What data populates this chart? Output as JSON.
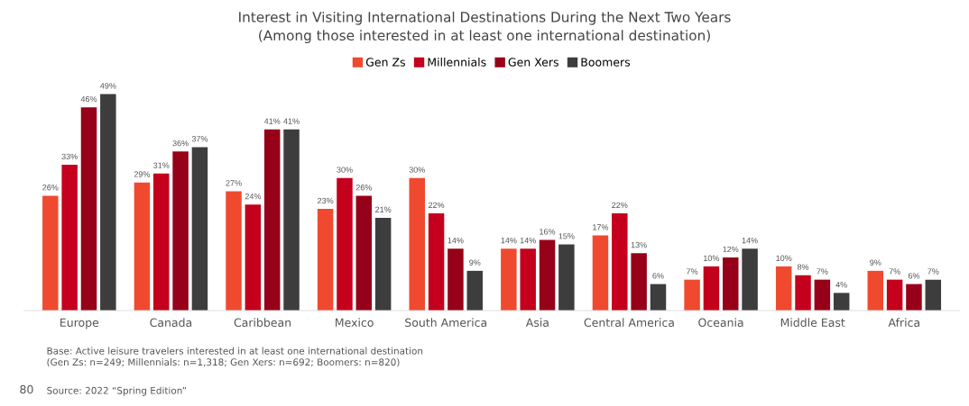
{
  "chart_data": {
    "type": "bar",
    "title": "Interest in Visiting International Destinations During the Next Two Years",
    "subtitle": "(Among those interested in at least one international destination)",
    "categories": [
      "Europe",
      "Canada",
      "Caribbean",
      "Mexico",
      "South America",
      "Asia",
      "Central America",
      "Oceania",
      "Middle East",
      "Africa"
    ],
    "series": [
      {
        "name": "Gen Zs",
        "color": "#ef4a2f",
        "values": [
          26,
          29,
          27,
          23,
          30,
          14,
          17,
          7,
          10,
          9
        ],
        "value_labels": [
          "26%",
          "29%",
          "27%",
          "23%",
          "30%",
          "14%",
          "17%",
          "7%",
          "10%",
          "9%"
        ]
      },
      {
        "name": "Millennials",
        "color": "#c4001d",
        "values": [
          33,
          31,
          24,
          30,
          22,
          14,
          22,
          10,
          8,
          7
        ],
        "value_labels": [
          "33%",
          "31%",
          "24%",
          "30%",
          "22%",
          "14%",
          "22%",
          "10%",
          "8%",
          "7%"
        ]
      },
      {
        "name": "Gen Xers",
        "color": "#960018",
        "values": [
          46,
          36,
          41,
          26,
          14,
          16,
          13,
          12,
          7,
          6
        ],
        "value_labels": [
          "46%",
          "36%",
          "41%",
          "26%",
          "14%",
          "16%",
          "13%",
          "12%",
          "7%",
          "6%"
        ]
      },
      {
        "name": "Boomers",
        "color": "#3d3d3d",
        "values": [
          49,
          37,
          41,
          21,
          9,
          15,
          6,
          14,
          4,
          7
        ],
        "value_labels": [
          "49%",
          "37%",
          "41%",
          "21%",
          "9%",
          "15%",
          "6%",
          "14%",
          "4%",
          "7%"
        ]
      }
    ],
    "legend": "top",
    "grid": false,
    "annotations": [
      "Base: Active leisure travelers interested in at least one international destination\n(Gen Zs: n=249; Millennials: n=1,318; Gen Xers: n=692; Boomers: n=820)",
      "80",
      "Source: 2022 “Spring Edition”"
    ]
  }
}
